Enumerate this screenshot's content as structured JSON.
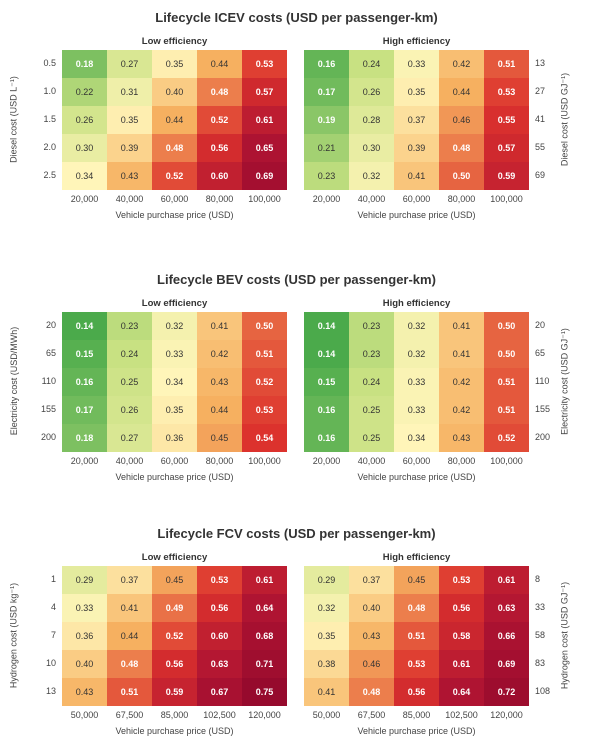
{
  "chart_data": [
    {
      "type": "heatmap",
      "title": "Lifecycle ICEV costs (USD per passenger-km)",
      "xlabel": "Vehicle purchase price (USD)",
      "x": [
        "20,000",
        "40,000",
        "60,000",
        "80,000",
        "100,000"
      ],
      "ylabel_left": "Diesel cost (USD L⁻¹)",
      "y_left": [
        "0.5",
        "1.0",
        "1.5",
        "2.0",
        "2.5"
      ],
      "ylabel_right": "Diesel cost (USD GJ⁻¹)",
      "y_right": [
        "13",
        "27",
        "41",
        "55",
        "69"
      ],
      "panels": [
        {
          "name": "Low efficiency",
          "values": [
            [
              0.18,
              0.27,
              0.35,
              0.44,
              0.53
            ],
            [
              0.22,
              0.31,
              0.4,
              0.48,
              0.57
            ],
            [
              0.26,
              0.35,
              0.44,
              0.52,
              0.61
            ],
            [
              0.3,
              0.39,
              0.48,
              0.56,
              0.65
            ],
            [
              0.34,
              0.43,
              0.52,
              0.6,
              0.69
            ]
          ]
        },
        {
          "name": "High efficiency",
          "values": [
            [
              0.16,
              0.24,
              0.33,
              0.42,
              0.51
            ],
            [
              0.17,
              0.26,
              0.35,
              0.44,
              0.53
            ],
            [
              0.19,
              0.28,
              0.37,
              0.46,
              0.55
            ],
            [
              0.21,
              0.3,
              0.39,
              0.48,
              0.57
            ],
            [
              0.23,
              0.32,
              0.41,
              0.5,
              0.59
            ]
          ]
        }
      ]
    },
    {
      "type": "heatmap",
      "title": "Lifecycle BEV costs (USD per passenger-km)",
      "xlabel": "Vehicle purchase price (USD)",
      "x": [
        "20,000",
        "40,000",
        "60,000",
        "80,000",
        "100,000"
      ],
      "ylabel_left": "Electricity cost (USD/MWh)",
      "y_left": [
        "20",
        "65",
        "110",
        "155",
        "200"
      ],
      "ylabel_right": "Electricity cost (USD GJ⁻¹)",
      "y_right": [
        "20",
        "65",
        "110",
        "155",
        "200"
      ],
      "panels": [
        {
          "name": "Low efficiency",
          "values": [
            [
              0.14,
              0.23,
              0.32,
              0.41,
              0.5
            ],
            [
              0.15,
              0.24,
              0.33,
              0.42,
              0.51
            ],
            [
              0.16,
              0.25,
              0.34,
              0.43,
              0.52
            ],
            [
              0.17,
              0.26,
              0.35,
              0.44,
              0.53
            ],
            [
              0.18,
              0.27,
              0.36,
              0.45,
              0.54
            ]
          ]
        },
        {
          "name": "High efficiency",
          "values": [
            [
              0.14,
              0.23,
              0.32,
              0.41,
              0.5
            ],
            [
              0.14,
              0.23,
              0.32,
              0.41,
              0.5
            ],
            [
              0.15,
              0.24,
              0.33,
              0.42,
              0.51
            ],
            [
              0.16,
              0.25,
              0.33,
              0.42,
              0.51
            ],
            [
              0.16,
              0.25,
              0.34,
              0.43,
              0.52
            ]
          ]
        }
      ]
    },
    {
      "type": "heatmap",
      "title": "Lifecycle FCV costs (USD per passenger-km)",
      "xlabel": "Vehicle purchase price (USD)",
      "x": [
        "50,000",
        "67,500",
        "85,000",
        "102,500",
        "120,000"
      ],
      "ylabel_left": "Hydrogen cost (USD kg⁻¹)",
      "y_left": [
        "1",
        "4",
        "7",
        "10",
        "13"
      ],
      "ylabel_right": "Hydrogen cost (USD GJ⁻¹)",
      "y_right": [
        "8",
        "33",
        "58",
        "83",
        "108"
      ],
      "panels": [
        {
          "name": "Low efficiency",
          "values": [
            [
              0.29,
              0.37,
              0.45,
              0.53,
              0.61
            ],
            [
              0.33,
              0.41,
              0.49,
              0.56,
              0.64
            ],
            [
              0.36,
              0.44,
              0.52,
              0.6,
              0.68
            ],
            [
              0.4,
              0.48,
              0.56,
              0.63,
              0.71
            ],
            [
              0.43,
              0.51,
              0.59,
              0.67,
              0.75
            ]
          ]
        },
        {
          "name": "High efficiency",
          "values": [
            [
              0.29,
              0.37,
              0.45,
              0.53,
              0.61
            ],
            [
              0.32,
              0.4,
              0.48,
              0.56,
              0.63
            ],
            [
              0.35,
              0.43,
              0.51,
              0.58,
              0.66
            ],
            [
              0.38,
              0.46,
              0.53,
              0.61,
              0.69
            ],
            [
              0.41,
              0.48,
              0.56,
              0.64,
              0.72
            ]
          ]
        }
      ]
    }
  ],
  "colors": {
    "scale_low": "#4aa84a",
    "scale_mid": "#fff4b0",
    "scale_high": "#9e0a2e"
  }
}
